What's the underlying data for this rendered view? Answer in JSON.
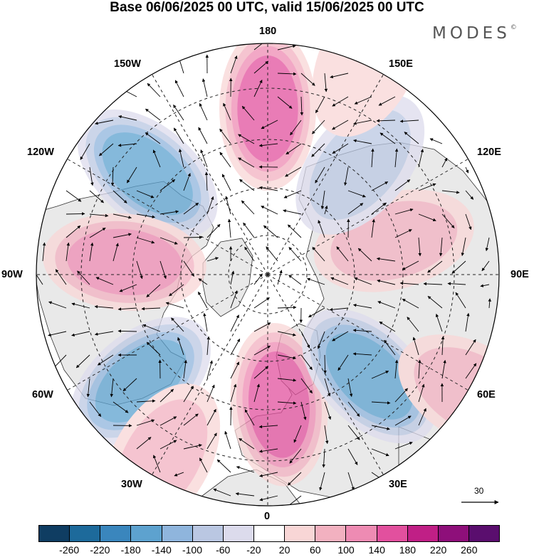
{
  "title": "Base 06/06/2025 00 UTC, valid 15/06/2025 00 UTC",
  "brand": {
    "name": "MODES",
    "mark": "©"
  },
  "longitude_labels": {
    "lon_180": "180",
    "lon_150e": "150E",
    "lon_120e": "120E",
    "lon_90e": "90E",
    "lon_60e": "60E",
    "lon_30e": "30E",
    "lon_0": "0",
    "lon_30w": "30W",
    "lon_60w": "60W",
    "lon_90w": "90W",
    "lon_120w": "120W",
    "lon_150w": "150W"
  },
  "reference_vector": {
    "label": "30"
  },
  "colorbar": {
    "colors": [
      "#0f3d62",
      "#1d6a9b",
      "#3a86bd",
      "#5da2cf",
      "#8fb5dd",
      "#bac7e2",
      "#dcdbec",
      "#ffffff",
      "#f8d6d6",
      "#f2b1c0",
      "#ee8bb3",
      "#e2509e",
      "#c01f86",
      "#8e0f7a",
      "#5a0e6e"
    ],
    "ticks": [
      "-260",
      "-220",
      "-180",
      "-140",
      "-100",
      "-60",
      "-20",
      "20",
      "60",
      "100",
      "140",
      "180",
      "220",
      "260"
    ]
  },
  "map": {
    "projection": "north polar stereographic",
    "field": "geopotential height anomaly with wind vectors",
    "land_color": "#e9e9e9",
    "anomalies": [
      {
        "lon": 180,
        "lat": 50,
        "value": 140
      },
      {
        "lon": -130,
        "lat": 52,
        "value": -150
      },
      {
        "lon": -95,
        "lat": 55,
        "value": 120
      },
      {
        "lon": -50,
        "lat": 50,
        "value": -150
      },
      {
        "lon": 5,
        "lat": 58,
        "value": 140
      },
      {
        "lon": 45,
        "lat": 55,
        "value": -150
      },
      {
        "lon": 105,
        "lat": 58,
        "value": 70
      },
      {
        "lon": 140,
        "lat": 55,
        "value": -80
      },
      {
        "lon": -30,
        "lat": 40,
        "value": 60
      },
      {
        "lon": 60,
        "lat": 35,
        "value": 60
      },
      {
        "lon": 155,
        "lat": 35,
        "value": 40
      }
    ]
  }
}
